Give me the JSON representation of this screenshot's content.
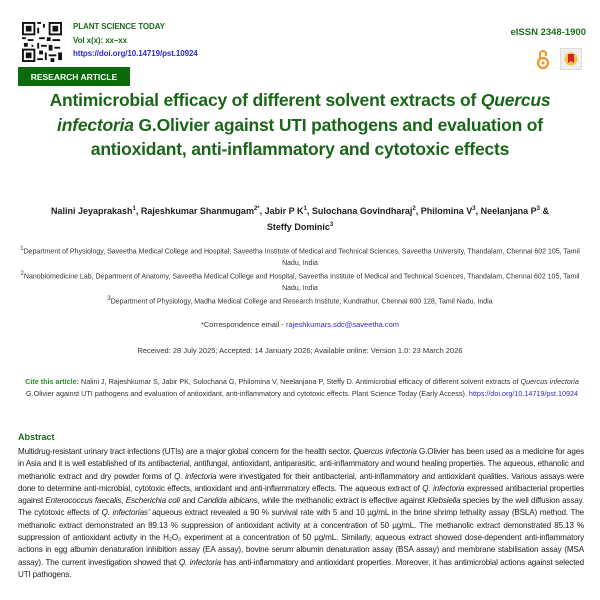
{
  "header": {
    "journal": "PLANT SCIENCE TODAY",
    "volume": "Vol x(x): xx–xx",
    "doi": "https://doi.org/10.14719/pst.10924",
    "eissn": "eISSN 2348-1900",
    "icons": [
      "qr-code-icon",
      "open-access-icon",
      "crossmark-icon"
    ],
    "article_type": "RESEARCH ARTICLE"
  },
  "title": [
    {
      "t": "Antimicrobial efficacy of different solvent extracts of "
    },
    {
      "t": "Quercus infectoria",
      "i": true
    },
    {
      "t": " G.Olivier against UTI pathogens and evaluation of antioxidant, anti-inflammatory and cytotoxic effects"
    }
  ],
  "authors": [
    {
      "name": "Nalini Jeyaprakash",
      "sup": "1"
    },
    {
      "name": "Rajeshkumar Shanmugam",
      "sup": "2*"
    },
    {
      "name": "Jabir P K",
      "sup": "1"
    },
    {
      "name": "Sulochana Govindharaj",
      "sup": "2"
    },
    {
      "name": "Philomina V",
      "sup": "3"
    },
    {
      "name": "Neelanjana P",
      "sup": "3"
    },
    {
      "name": "Steffy Dominic",
      "sup": "3"
    }
  ],
  "affiliations": [
    {
      "sup": "1",
      "text": "Department of Physiology, Saveetha Medical College and Hospital, Saveetha Institute of Medical and Technical Sciences, Saveetha University, Thandalam, Chennai 602 105, Tamil Nadu, India"
    },
    {
      "sup": "2",
      "text": "Nanobiomedicine Lab, Department of Anatomy, Saveetha Medical College and Hospital, Saveetha Institute of Medical and Technical Sciences, Thandalam, Chennai  602 105, Tamil Nadu, India"
    },
    {
      "sup": "3",
      "text": "Department of Physiology, Madha Medical College and Research Institute, Kundrathur, Chennai 600 128, Tamil Nadu, India"
    }
  ],
  "correspondence": {
    "label": "*Correspondence email - ",
    "email": "rajeshkumars.sdc@saveetha.com"
  },
  "dates": "Received: 28 July 2025; Accepted: 14 January 2026; Available online: Version 1.0: 23 March 2026",
  "cite": {
    "label": "Cite this article:",
    "segments": [
      {
        "t": " Nalini J, Rajeshkumar S, Jabir PK, Sulochana G, Philomina V, Neelanjana P, Steffy D. Antimicrobial efficacy of different solvent extracts of "
      },
      {
        "t": "Quercus infectoria",
        "i": true
      },
      {
        "t": " G.Olivier against UTI pathogens and evaluation of antioxidant, anti-inflammatory and cytotoxic effects. Plant Science Today (Early Access). "
      }
    ],
    "link": "https://doi.org/10.14719/pst.10924"
  },
  "abstract": {
    "heading": "Abstract",
    "segments": [
      {
        "t": "Multidrug-resistant urinary tract infections (UTIs) are a major global concern for the health sector. "
      },
      {
        "t": "Quercus infectoria",
        "i": true
      },
      {
        "t": " G.Olivier has been used as a medicine for ages in Asia and it is well established of its antibacterial, antifungal, antioxidant, antiparasitic, anti-inflammatory and wound healing properties. The aqueous, ethanolic and methanolic extract and dry powder forms of "
      },
      {
        "t": "Q. infectoria",
        "i": true
      },
      {
        "t": " were investigated for their antibacterial, anti-inflammatory and antioxidant qualities. Various assays were done to determine anti-microbial, cytotoxic effects, antioxidant and anti-inflammatory effects. The aqueous extract of "
      },
      {
        "t": "Q. infectoria",
        "i": true
      },
      {
        "t": " expressed antibacterial properties against "
      },
      {
        "t": "Enterococcus faecalis",
        "i": true
      },
      {
        "t": ", "
      },
      {
        "t": "Escherichia coli",
        "i": true
      },
      {
        "t": " and "
      },
      {
        "t": "Candida albicans",
        "i": true
      },
      {
        "t": ", while the methanolic extract is effective against "
      },
      {
        "t": "Klebsiella",
        "i": true
      },
      {
        "t": " species by the well diffusion assay. The cytotoxic effects of "
      },
      {
        "t": "Q. infectorias'",
        "i": true
      },
      {
        "t": " aqueous extract revealed a 90 % survival rate with 5 and 10 µg/mL in the brine shrimp lethality assay (BSLA) method. The methanolic extract demonstrated an 89.13 % suppression of antioxidant activity at a concentration of 50 µg/mL. The methanolic extract demonstrated 85.13 % suppression of antioxidant activity in the H₂O₂ experiment at a concentration of 50 µg/mL. Similarly, aqueous extract showed dose-dependent anti-inflammatory actions in egg albumin denaturation inhibition assay (EA assay), bovine serum albumin denaturation assay (BSA assay) and membrane stabilisation assay (MSA assay). The current investigation showed that "
      },
      {
        "t": "Q. infectoria",
        "i": true
      },
      {
        "t": " has anti-inflammatory and antioxidant properties.  Moreover, it has antimicrobial actions against selected UTI pathogens."
      }
    ]
  },
  "colors": {
    "brand_green": "#1d6b1d",
    "badge_green": "#0b6a0b",
    "link_blue": "#2b2bd6",
    "open_access_orange": "#f7931e"
  }
}
